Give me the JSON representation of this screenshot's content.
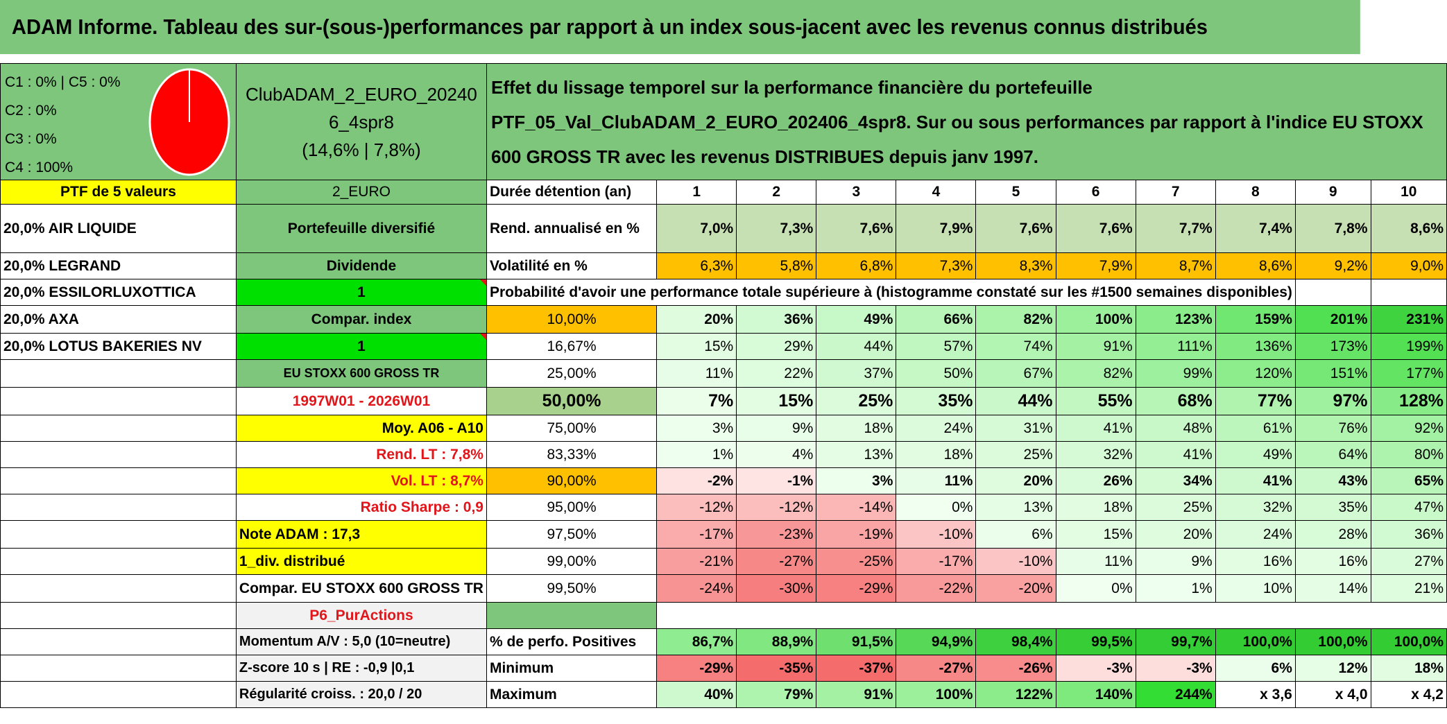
{
  "title": "ADAM Informe. Tableau des sur-(sous-)performances par rapport à un index sous-jacent avec les revenus connus distribués",
  "allocation": {
    "lines": [
      "C1 : 0% | C5 : 0%",
      "C2 : 0%",
      "C3 : 0%",
      "C4 : 100%"
    ],
    "pie_color": "#FF0000"
  },
  "portfolio": {
    "name": "ClubADAM_2_EURO_202406_4spr8",
    "stats": "(14,6% | 7,8%)",
    "code": "2_EURO"
  },
  "description": "Effet du lissage temporel sur la performance financière du portefeuille PTF_05_Val_ClubADAM_2_EURO_202406_4spr8. Sur ou sous performances par rapport à l'indice EU STOXX 600 GROSS TR avec les revenus DISTRIBUES depuis janv 1997.",
  "holdings_header": "PTF de 5 valeurs",
  "holdings": [
    "20,0% AIR LIQUIDE",
    "20,0% LEGRAND",
    "20,0% ESSILORLUXOTTICA",
    "20,0% AXA",
    "20,0% LOTUS BAKERIES NV"
  ],
  "info": {
    "diversified": "Portefeuille diversifié",
    "dividend_label": "Dividende",
    "dividend_value": "1",
    "compar_label": "Compar. index",
    "compar_value": "1",
    "index_name": "EU STOXX 600 GROSS TR",
    "period": "1997W01 - 2026W01",
    "moy": "Moy. A06 - A10",
    "rend_lt": "Rend. LT : 7,8%",
    "vol_lt": "Vol. LT : 8,7%",
    "sharpe": "Ratio Sharpe : 0,9",
    "note": "Note ADAM : 17,3",
    "div_distrib": "1_div. distribué",
    "compar_full": "Compar. EU STOXX 600 GROSS TR",
    "strategy": "P6_PurActions",
    "momentum": "Momentum A/V : 5,0 (10=neutre)",
    "zscore": "Z-score 10 s | RE : -0,9 |0,1",
    "regularity": "Régularité croiss. : 20,0 / 20"
  },
  "duration_label": "Durée détention (an)",
  "years": [
    "1",
    "2",
    "3",
    "4",
    "5",
    "6",
    "7",
    "8",
    "9",
    "10"
  ],
  "rend_label": "Rend. annualisé en %",
  "rend": [
    "7,0%",
    "7,3%",
    "7,6%",
    "7,9%",
    "7,6%",
    "7,6%",
    "7,7%",
    "7,4%",
    "7,8%",
    "8,6%"
  ],
  "vol_label": "Volatilité en %",
  "vol": [
    "6,3%",
    "5,8%",
    "6,8%",
    "7,3%",
    "8,3%",
    "7,9%",
    "8,7%",
    "8,6%",
    "9,2%",
    "9,0%"
  ],
  "prob_title": "Probabilité d'avoir une performance totale supérieure à (histogramme constaté sur les #1500 semaines disponibles)",
  "prob_rows": [
    {
      "p": "10,00%",
      "v": [
        "20%",
        "36%",
        "49%",
        "66%",
        "82%",
        "100%",
        "123%",
        "159%",
        "201%",
        "231%"
      ]
    },
    {
      "p": "16,67%",
      "v": [
        "15%",
        "29%",
        "44%",
        "57%",
        "74%",
        "91%",
        "111%",
        "136%",
        "173%",
        "199%"
      ]
    },
    {
      "p": "25,00%",
      "v": [
        "11%",
        "22%",
        "37%",
        "50%",
        "67%",
        "82%",
        "99%",
        "120%",
        "151%",
        "177%"
      ]
    },
    {
      "p": "50,00%",
      "v": [
        "7%",
        "15%",
        "25%",
        "35%",
        "44%",
        "55%",
        "68%",
        "77%",
        "97%",
        "128%"
      ]
    },
    {
      "p": "75,00%",
      "v": [
        "3%",
        "9%",
        "18%",
        "24%",
        "31%",
        "41%",
        "48%",
        "61%",
        "76%",
        "92%"
      ]
    },
    {
      "p": "83,33%",
      "v": [
        "1%",
        "4%",
        "13%",
        "18%",
        "25%",
        "32%",
        "41%",
        "49%",
        "64%",
        "80%"
      ]
    },
    {
      "p": "90,00%",
      "v": [
        "-2%",
        "-1%",
        "3%",
        "11%",
        "20%",
        "26%",
        "34%",
        "41%",
        "43%",
        "65%"
      ]
    },
    {
      "p": "95,00%",
      "v": [
        "-12%",
        "-12%",
        "-14%",
        "0%",
        "13%",
        "18%",
        "25%",
        "32%",
        "35%",
        "47%"
      ]
    },
    {
      "p": "97,50%",
      "v": [
        "-17%",
        "-23%",
        "-19%",
        "-10%",
        "6%",
        "15%",
        "20%",
        "24%",
        "28%",
        "36%"
      ]
    },
    {
      "p": "99,00%",
      "v": [
        "-21%",
        "-27%",
        "-25%",
        "-17%",
        "-10%",
        "11%",
        "9%",
        "16%",
        "16%",
        "27%"
      ]
    },
    {
      "p": "99,50%",
      "v": [
        "-24%",
        "-30%",
        "-29%",
        "-22%",
        "-20%",
        "0%",
        "1%",
        "10%",
        "14%",
        "21%"
      ]
    }
  ],
  "pos_label": "% de perfo. Positives",
  "pos": [
    "86,7%",
    "88,9%",
    "91,5%",
    "94,9%",
    "98,4%",
    "99,5%",
    "99,7%",
    "100,0%",
    "100,0%",
    "100,0%"
  ],
  "min_label": "Minimum",
  "min": [
    "-29%",
    "-35%",
    "-37%",
    "-27%",
    "-26%",
    "-3%",
    "-3%",
    "6%",
    "12%",
    "18%"
  ],
  "max_label": "Maximum",
  "max": [
    "40%",
    "79%",
    "91%",
    "100%",
    "122%",
    "140%",
    "244%",
    "x 3,6",
    "x 4,0",
    "x 4,2"
  ]
}
